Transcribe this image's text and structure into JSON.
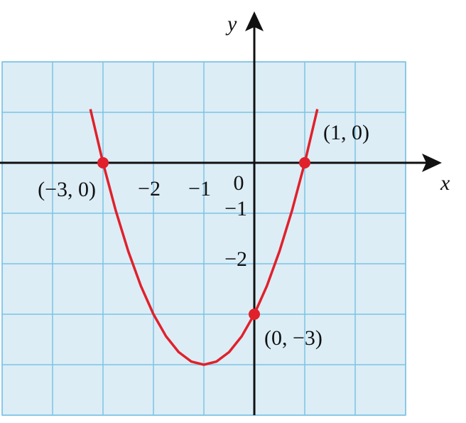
{
  "chart_data": {
    "type": "line",
    "x_label": "x",
    "y_label": "y",
    "xlim": [
      -5,
      3
    ],
    "ylim": [
      -5,
      2
    ],
    "xticks": [
      {
        "value": -5,
        "label": null
      },
      {
        "value": -4,
        "label": null
      },
      {
        "value": -3,
        "label": null
      },
      {
        "value": -2,
        "label": "−2"
      },
      {
        "value": -1,
        "label": "−1"
      },
      0,
      {
        "value": 1,
        "label": null
      },
      {
        "value": 2,
        "label": null
      },
      {
        "value": 3,
        "label": null
      }
    ],
    "yticks": [
      {
        "value": -5,
        "label": null
      },
      {
        "value": -4,
        "label": null
      },
      {
        "value": -3,
        "label": null
      },
      {
        "value": -2,
        "label": "−2"
      },
      {
        "value": -1,
        "label": "−1"
      },
      {
        "value": 0,
        "label": null
      },
      {
        "value": 1,
        "label": null
      },
      {
        "value": 2,
        "label": null
      }
    ],
    "grid": true,
    "series": [
      {
        "color": "#e0212b",
        "x": [
          -3.25,
          -3,
          -2.75,
          -2.5,
          -2.25,
          -2,
          -1.75,
          -1.5,
          -1.25,
          -1,
          -0.75,
          -0.5,
          -0.25,
          0,
          0.25,
          0.5,
          0.75,
          1,
          1.25
        ],
        "values": [
          1.0625,
          0,
          -0.9375,
          -1.75,
          -2.4375,
          -3,
          -3.4375,
          -3.75,
          -3.9375,
          -4,
          -3.9375,
          -3.75,
          -3.4375,
          -3,
          -2.4375,
          -1.75,
          -0.9375,
          0,
          1.0625
        ]
      }
    ],
    "points": {
      "color": "#e0212b",
      "x": [
        -3,
        1,
        0
      ],
      "values": [
        0,
        0,
        -3
      ],
      "labels": [
        "(−3, 0)",
        "(1, 0)",
        "(0, −3)"
      ]
    }
  }
}
